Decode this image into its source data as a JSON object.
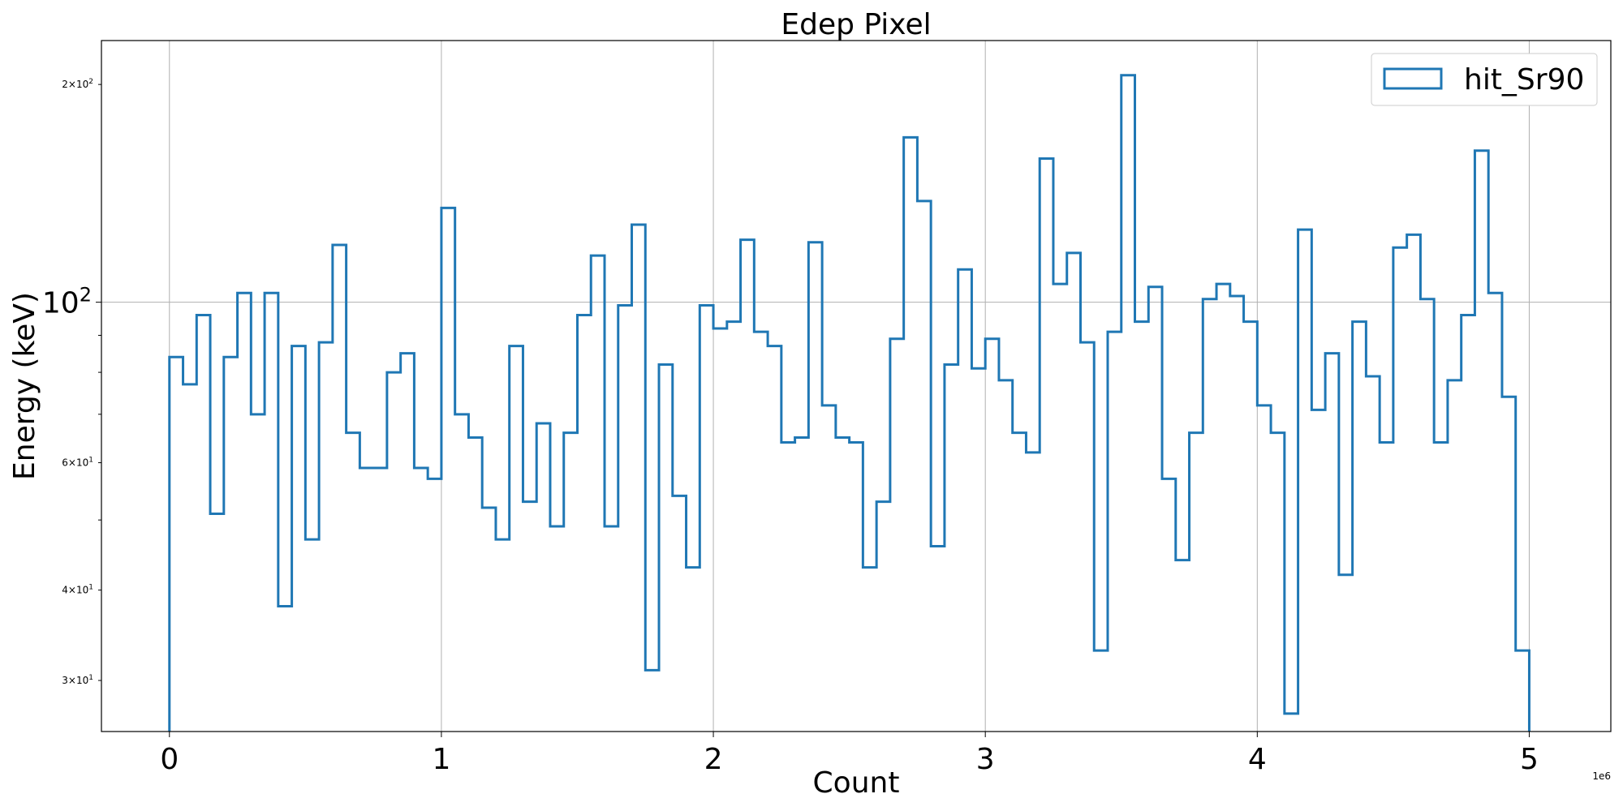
{
  "chart_data": {
    "type": "histogram-step",
    "title": "Edep Pixel",
    "xlabel": "Count",
    "ylabel": "Energy (keV)",
    "x_offset_label": "1e6",
    "x_scale_factor": 1000000,
    "xlim": [
      -250000,
      5300000
    ],
    "ylim": [
      25.5,
      230
    ],
    "yscale": "log",
    "grid": true,
    "legend_position": "upper right",
    "x_ticks": [
      {
        "value": 0,
        "label": "0"
      },
      {
        "value": 1000000,
        "label": "1"
      },
      {
        "value": 2000000,
        "label": "2"
      },
      {
        "value": 3000000,
        "label": "3"
      },
      {
        "value": 4000000,
        "label": "4"
      },
      {
        "value": 5000000,
        "label": "5"
      }
    ],
    "y_ticks_major": [
      {
        "value": 100,
        "base": "10",
        "exp": "2"
      }
    ],
    "y_ticks_minor": [
      {
        "value": 30,
        "mant": "3",
        "base": "10",
        "exp": "1"
      },
      {
        "value": 40,
        "mant": "4",
        "base": "10",
        "exp": "1"
      },
      {
        "value": 50,
        "mant": "",
        "base": "",
        "exp": ""
      },
      {
        "value": 60,
        "mant": "6",
        "base": "10",
        "exp": "1"
      },
      {
        "value": 70,
        "mant": "",
        "base": "",
        "exp": ""
      },
      {
        "value": 80,
        "mant": "",
        "base": "",
        "exp": ""
      },
      {
        "value": 90,
        "mant": "",
        "base": "",
        "exp": ""
      },
      {
        "value": 200,
        "mant": "2",
        "base": "10",
        "exp": "2"
      }
    ],
    "bin_width": 50000,
    "bin_start": 0,
    "series": [
      {
        "name": "hit_Sr90",
        "color": "#1f77b4",
        "values": [
          84,
          77,
          96,
          51,
          84,
          103,
          70,
          103,
          38,
          87,
          47,
          88,
          120,
          66,
          59,
          59,
          80,
          85,
          59,
          57,
          135,
          70,
          65,
          52,
          47,
          87,
          53,
          68,
          49,
          66,
          96,
          116,
          49,
          99,
          128,
          31,
          82,
          54,
          43,
          99,
          92,
          94,
          122,
          91,
          87,
          64,
          65,
          121,
          72,
          65,
          64,
          43,
          53,
          89,
          169,
          138,
          46,
          82,
          111,
          81,
          89,
          78,
          66,
          62,
          158,
          106,
          117,
          88,
          33,
          91,
          206,
          94,
          105,
          57,
          44,
          66,
          101,
          106,
          102,
          94,
          72,
          66,
          27,
          126,
          71,
          85,
          42,
          94,
          79,
          64,
          119,
          124,
          101,
          64,
          78,
          96,
          162,
          103,
          74,
          33
        ]
      }
    ]
  }
}
